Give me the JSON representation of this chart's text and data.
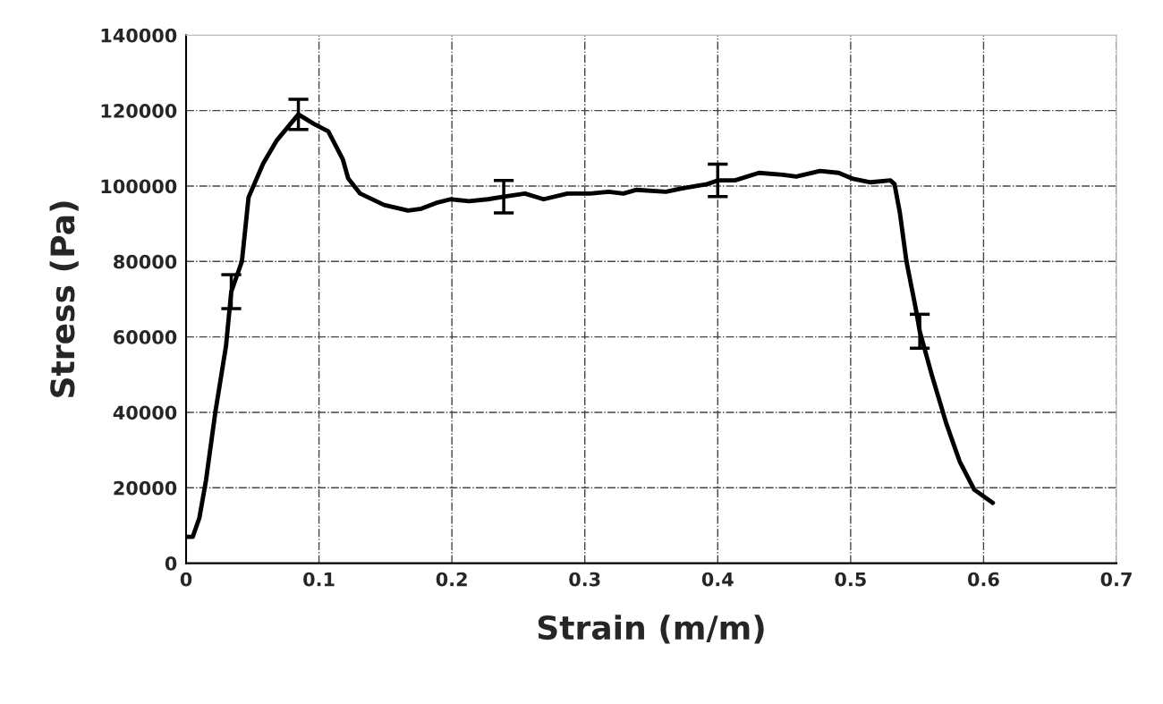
{
  "chart_data": {
    "type": "line",
    "xlabel": "Strain (m/m)",
    "ylabel": "Stress (Pa)",
    "xlim": [
      0,
      0.7
    ],
    "xticks": [
      0,
      0.1,
      0.2,
      0.3,
      0.4,
      0.5,
      0.6,
      0.7
    ],
    "ylim": [
      0,
      140000
    ],
    "yticks": [
      0,
      20000,
      40000,
      60000,
      80000,
      100000,
      120000,
      140000
    ],
    "grid": true,
    "legend": false,
    "marker": "none",
    "line_style": "solid",
    "series": [
      {
        "color": "#000000",
        "x": [
          0.001,
          0.005,
          0.01,
          0.015,
          0.022,
          0.03,
          0.034,
          0.042,
          0.047,
          0.058,
          0.068,
          0.0845,
          0.096,
          0.107,
          0.118,
          0.122,
          0.131,
          0.149,
          0.167,
          0.177,
          0.188,
          0.199,
          0.213,
          0.227,
          0.239,
          0.255,
          0.269,
          0.287,
          0.304,
          0.318,
          0.329,
          0.339,
          0.361,
          0.375,
          0.392,
          0.4,
          0.413,
          0.431,
          0.449,
          0.459,
          0.477,
          0.491,
          0.501,
          0.515,
          0.53,
          0.533,
          0.537,
          0.542,
          0.549,
          0.552,
          0.561,
          0.572,
          0.582,
          0.593,
          0.607
        ],
        "values": [
          7000,
          7000,
          12000,
          22000,
          40000,
          57500,
          72000,
          80000,
          97000,
          106000,
          112000,
          119000,
          116500,
          114500,
          107000,
          102000,
          98000,
          95000,
          93500,
          94000,
          95500,
          96500,
          96000,
          96500,
          97200,
          98000,
          96500,
          98000,
          98000,
          98500,
          98000,
          99000,
          98500,
          99500,
          100500,
          101500,
          101500,
          103500,
          103000,
          102500,
          104000,
          103500,
          102000,
          101000,
          101500,
          100500,
          93000,
          80000,
          67500,
          61500,
          50000,
          37000,
          27000,
          19500,
          16000
        ],
        "errors": [
          null,
          null,
          null,
          null,
          null,
          null,
          4500,
          null,
          null,
          null,
          null,
          4000,
          null,
          null,
          null,
          null,
          null,
          null,
          null,
          null,
          null,
          null,
          null,
          null,
          4300,
          null,
          null,
          null,
          null,
          null,
          null,
          null,
          null,
          null,
          null,
          4300,
          null,
          null,
          null,
          null,
          null,
          null,
          null,
          null,
          null,
          null,
          null,
          null,
          null,
          4500,
          null,
          null,
          null,
          null,
          null
        ]
      }
    ]
  }
}
